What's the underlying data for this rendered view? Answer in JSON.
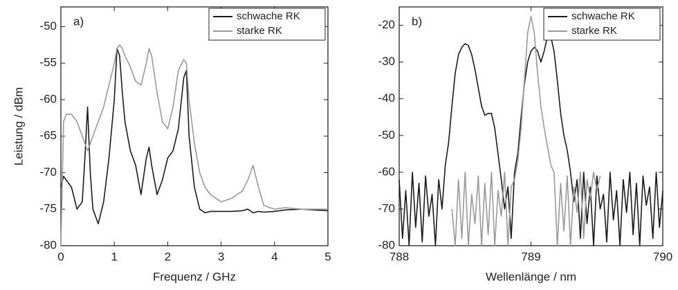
{
  "chart_data": [
    {
      "type": "line",
      "annotation": "a)",
      "xlabel": "Frequenz / GHz",
      "ylabel": "Leistung / dBm",
      "xlim": [
        0,
        5
      ],
      "ylim": [
        -80,
        -47.3
      ],
      "xticks": [
        0,
        1,
        2,
        3,
        4,
        5
      ],
      "yticks": [
        -80,
        -75,
        -70,
        -65,
        -60,
        -55,
        -50
      ],
      "legend": "upper right",
      "x": [
        0,
        0.05,
        0.1,
        0.2,
        0.3,
        0.4,
        0.45,
        0.5,
        0.55,
        0.6,
        0.7,
        0.8,
        0.9,
        1.0,
        1.05,
        1.1,
        1.15,
        1.2,
        1.3,
        1.4,
        1.5,
        1.6,
        1.65,
        1.7,
        1.8,
        1.9,
        2.0,
        2.1,
        2.2,
        2.3,
        2.35,
        2.4,
        2.5,
        2.6,
        2.7,
        2.8,
        3.0,
        3.2,
        3.4,
        3.5,
        3.6,
        3.7,
        3.8,
        4.0,
        4.2,
        4.5,
        5.0
      ],
      "series": [
        {
          "name": "schwache RK",
          "color": "#1a1a1a",
          "values": [
            -72,
            -70.5,
            -71,
            -72,
            -75,
            -74,
            -68,
            -61,
            -70,
            -75,
            -77,
            -74,
            -68,
            -60,
            -53,
            -54,
            -59,
            -63,
            -67,
            -69,
            -73,
            -68,
            -66.5,
            -69,
            -73,
            -71,
            -68,
            -67,
            -64,
            -57,
            -56,
            -65,
            -72,
            -75,
            -75.5,
            -75.3,
            -75.3,
            -75.3,
            -75.2,
            -75,
            -75.5,
            -75.3,
            -75.4,
            -75.3,
            -75.1,
            -75,
            -75.2
          ]
        },
        {
          "name": "starke RK",
          "color": "#999999",
          "values": [
            -80,
            -63,
            -62,
            -62,
            -63,
            -65,
            -66,
            -67,
            -66,
            -65,
            -63,
            -61,
            -58,
            -55,
            -53,
            -52.5,
            -53,
            -54,
            -55.5,
            -57.5,
            -58,
            -55,
            -53,
            -54,
            -59,
            -63,
            -64,
            -61,
            -56,
            -54.5,
            -55,
            -60,
            -66,
            -70,
            -72,
            -73,
            -74,
            -73.5,
            -72.5,
            -71,
            -69,
            -72,
            -74.5,
            -75,
            -74.8,
            -75,
            -75
          ]
        }
      ]
    },
    {
      "type": "line",
      "annotation": "b)",
      "xlabel": "Wellenlänge / nm",
      "xlim": [
        788,
        790
      ],
      "ylim": [
        -80,
        -15
      ],
      "xticks": [
        788,
        789,
        790
      ],
      "yticks": [
        -80,
        -70,
        -60,
        -50,
        -40,
        -30,
        -20
      ],
      "legend": "upper right",
      "x": [
        788,
        788.025,
        788.05,
        788.075,
        788.1,
        788.125,
        788.15,
        788.175,
        788.2,
        788.225,
        788.25,
        788.275,
        788.3,
        788.325,
        788.35,
        788.375,
        788.4,
        788.425,
        788.45,
        788.475,
        788.5,
        788.525,
        788.55,
        788.575,
        788.6,
        788.625,
        788.65,
        788.675,
        788.7,
        788.725,
        788.75,
        788.775,
        788.8,
        788.825,
        788.85,
        788.875,
        788.9,
        788.925,
        788.95,
        788.975,
        789,
        789.025,
        789.05,
        789.075,
        789.1,
        789.125,
        789.15,
        789.175,
        789.2,
        789.225,
        789.25,
        789.275,
        789.3,
        789.325,
        789.35,
        789.375,
        789.4,
        789.425,
        789.45,
        789.475,
        789.5,
        789.525,
        789.55,
        789.575,
        789.6,
        789.625,
        789.65,
        789.675,
        789.7,
        789.725,
        789.75,
        789.775,
        789.8,
        789.825,
        789.85,
        789.875,
        789.9,
        789.925,
        789.95,
        789.975,
        790
      ],
      "series": [
        {
          "name": "schwache RK",
          "color": "#1a1a1a",
          "values": [
            -62,
            -78,
            -65,
            -80,
            -60,
            -75,
            -63,
            -79,
            -61,
            -72,
            -66,
            -80,
            -62,
            -70,
            -58,
            -52,
            -42,
            -33,
            -28,
            -26,
            -25,
            -25.5,
            -28,
            -32,
            -37,
            -42,
            -44.5,
            -44,
            -44,
            -48,
            -55,
            -62,
            -70,
            -64,
            -78,
            -60,
            -55,
            -45,
            -36,
            -30,
            -27,
            -26,
            -27,
            -30,
            -27,
            -23,
            -23,
            -27,
            -35,
            -44,
            -50,
            -54,
            -60,
            -68,
            -62,
            -78,
            -60,
            -74,
            -64,
            -80,
            -61,
            -70,
            -66,
            -79,
            -60,
            -73,
            -65,
            -80,
            -62,
            -71,
            -60,
            -77,
            -63,
            -80,
            -61,
            -69,
            -64,
            -78,
            -60,
            -75,
            -65
          ]
        },
        {
          "name": "starke RK",
          "color": "#999999",
          "values": [
            null,
            null,
            null,
            null,
            null,
            null,
            null,
            null,
            null,
            null,
            null,
            null,
            null,
            null,
            null,
            null,
            -70,
            -80,
            -62,
            -78,
            -60,
            -80,
            -66,
            -74,
            -61,
            -80,
            -63,
            -77,
            -60,
            -80,
            -65,
            -72,
            -60,
            -80,
            -64,
            -62,
            -57,
            -48,
            -35,
            -22,
            -17.5,
            -22,
            -33,
            -42,
            -48,
            -53,
            -58,
            -60,
            -80,
            -63,
            -76,
            -61,
            -80,
            -64,
            -71,
            -60,
            -78,
            -62,
            -67,
            -60,
            -65,
            -61,
            null,
            null,
            null,
            null,
            null,
            null,
            null,
            null,
            null,
            null,
            null,
            null,
            null,
            null,
            null,
            null,
            null,
            null,
            null
          ]
        }
      ]
    }
  ]
}
